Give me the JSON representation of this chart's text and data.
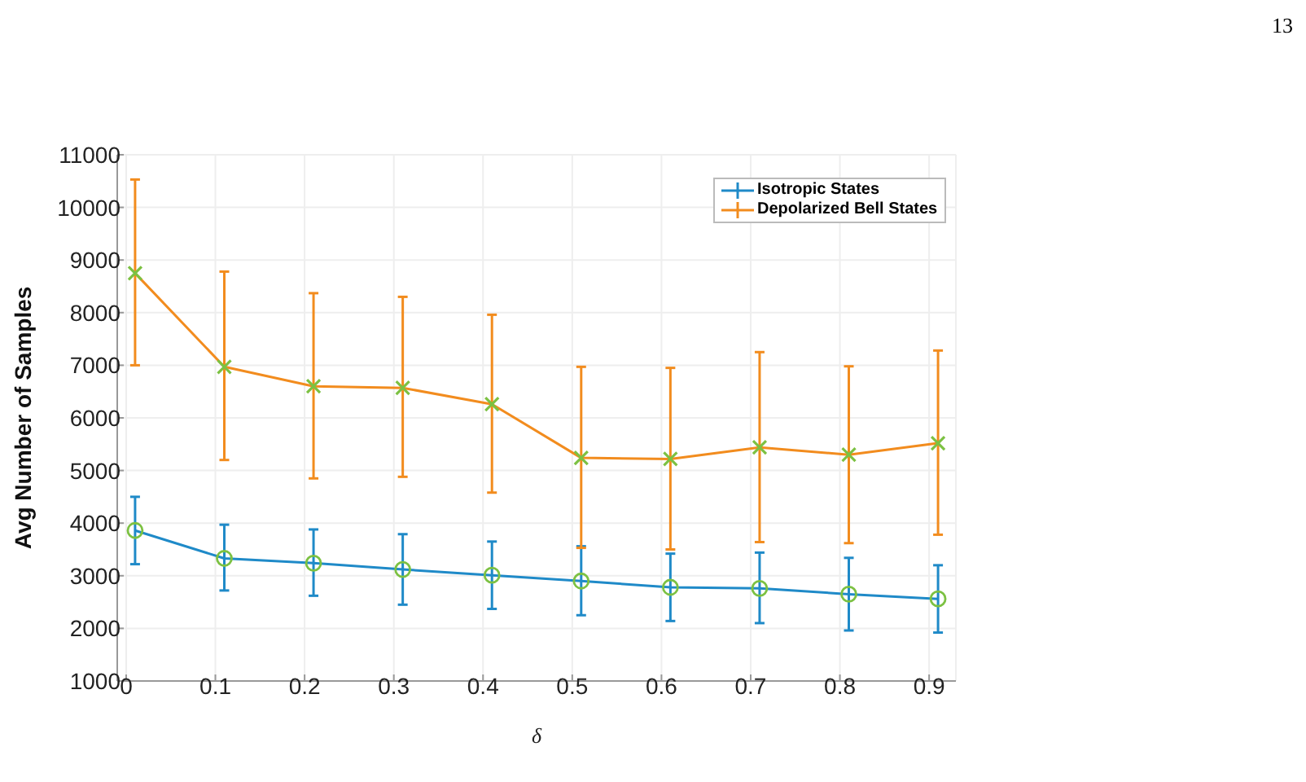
{
  "chart_data": {
    "type": "line",
    "xlabel": "δ",
    "ylabel": "Avg Number of Samples",
    "annotations": [
      "13"
    ],
    "x": [
      0.01,
      0.11,
      0.21,
      0.31,
      0.41,
      0.51,
      0.61,
      0.71,
      0.81,
      0.91
    ],
    "xlim": [
      -0.01,
      0.93
    ],
    "xticks": [
      0,
      0.1,
      0.2,
      0.3,
      0.4,
      0.5,
      0.6,
      0.7,
      0.8,
      0.9
    ],
    "ylim": [
      1000,
      11000
    ],
    "yticks": [
      1000,
      2000,
      3000,
      4000,
      5000,
      6000,
      7000,
      8000,
      9000,
      10000,
      11000
    ],
    "grid": true,
    "legend": "top right",
    "series": [
      {
        "name": "Isotropic States",
        "color": "#1f8ac8",
        "marker": "circle",
        "values": [
          3860,
          3330,
          3240,
          3120,
          3010,
          2900,
          2780,
          2760,
          2650,
          2560
        ],
        "errors": [
          [
            3220,
            4500
          ],
          [
            2720,
            3970
          ],
          [
            2620,
            3880
          ],
          [
            2450,
            3790
          ],
          [
            2370,
            3650
          ],
          [
            2250,
            3560
          ],
          [
            2140,
            3420
          ],
          [
            2100,
            3440
          ],
          [
            1960,
            3340
          ],
          [
            1920,
            3200
          ]
        ]
      },
      {
        "name": "Depolarized Bell States",
        "color": "#f28c1e",
        "marker": "cross",
        "values": [
          8750,
          6970,
          6600,
          6570,
          6260,
          5240,
          5220,
          5440,
          5300,
          5520
        ],
        "errors": [
          [
            7000,
            10530
          ],
          [
            5200,
            8780
          ],
          [
            4850,
            8370
          ],
          [
            4880,
            8300
          ],
          [
            4580,
            7960
          ],
          [
            3530,
            6970
          ],
          [
            3500,
            6950
          ],
          [
            3640,
            7250
          ],
          [
            3620,
            6980
          ],
          [
            3780,
            7280
          ]
        ]
      }
    ]
  }
}
